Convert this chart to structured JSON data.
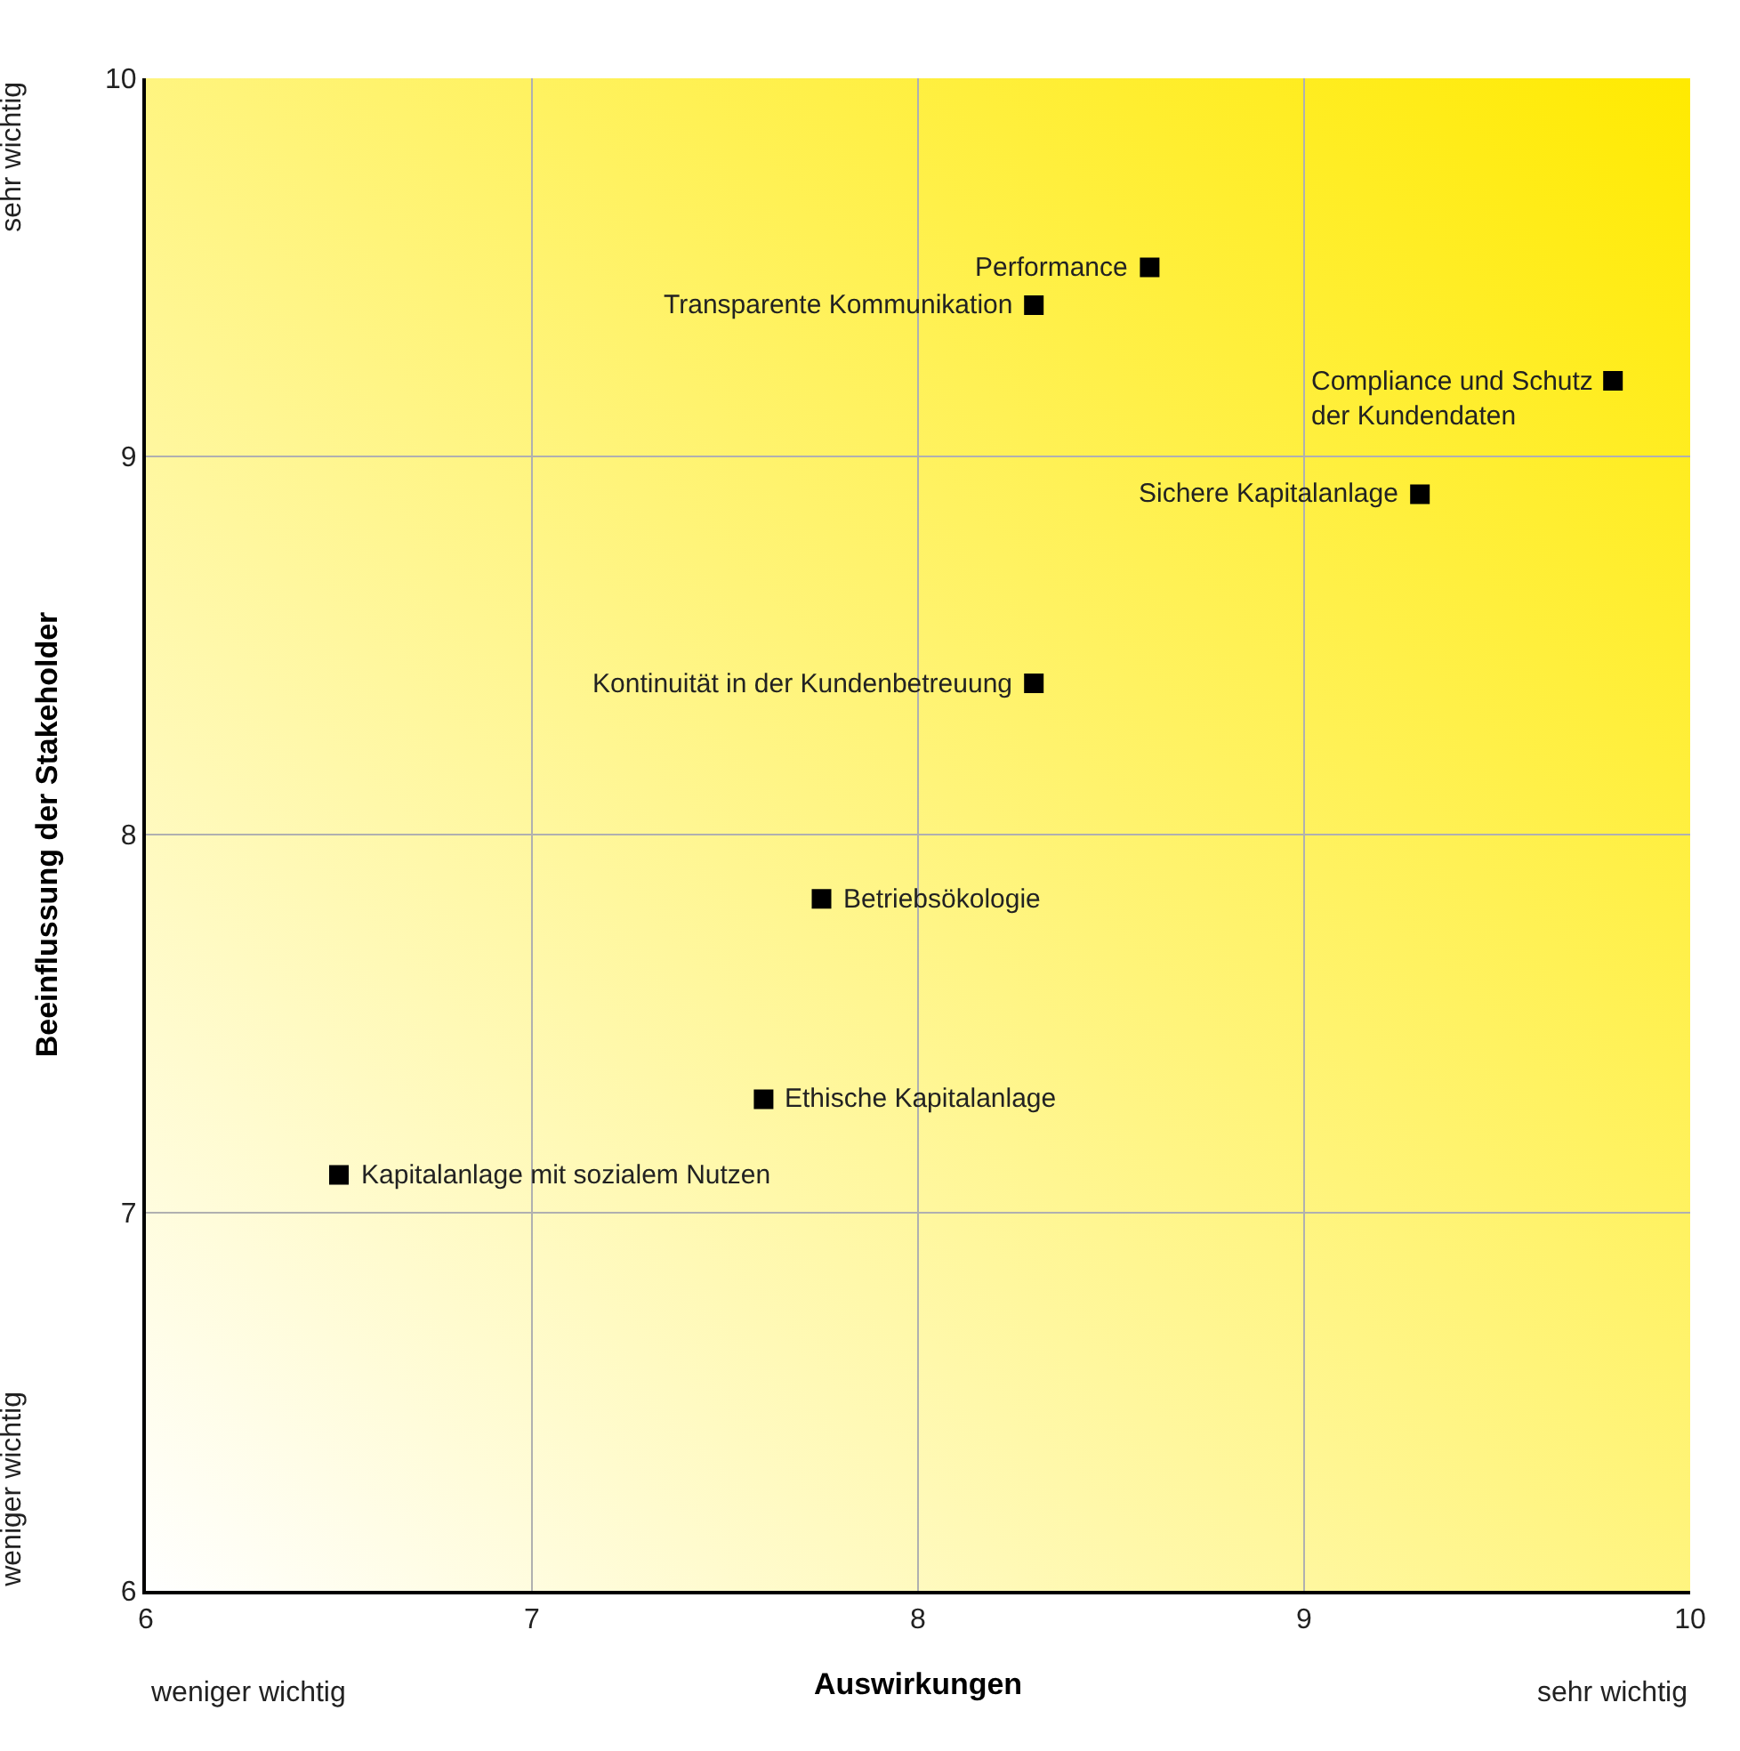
{
  "chart_data": {
    "type": "scatter",
    "xlabel": "Auswirkungen",
    "ylabel": "Beeinflussung der Stakeholder",
    "series": [
      {
        "color": "#000000",
        "x": [
          8.6,
          8.3,
          9.8,
          9.3,
          8.3,
          7.75,
          7.6,
          6.5
        ],
        "values": [
          9.5,
          9.4,
          9.2,
          8.9,
          8.4,
          7.83,
          7.3,
          7.1
        ]
      }
    ],
    "annotations": [
      {
        "text": "Performance",
        "x": 8.6,
        "y": 9.5
      },
      {
        "text": "Transparente Kommunikation",
        "x": 8.3,
        "y": 9.4
      },
      {
        "text": "Compliance und Schutz\nder Kundendaten",
        "x": 9.8,
        "y": 9.2
      },
      {
        "text": "Sichere Kapitalanlage",
        "x": 9.3,
        "y": 8.9
      },
      {
        "text": "Kontinuität in der Kundenbetreuung",
        "x": 8.3,
        "y": 8.4
      },
      {
        "text": "Betriebsökologie",
        "x": 7.75,
        "y": 7.83
      },
      {
        "text": "Ethische Kapitalanlage",
        "x": 7.6,
        "y": 7.3
      },
      {
        "text": "Kapitalanlage mit sozialem Nutzen",
        "x": 6.5,
        "y": 7.1
      },
      "weniger wichtig",
      "sehr wichtig",
      "weniger wichtig",
      "sehr wichtig"
    ],
    "xlim": [
      6,
      10
    ],
    "ylim": [
      6,
      10
    ],
    "xticks": [
      6,
      7,
      8,
      9,
      10
    ],
    "yticks": [
      6,
      7,
      8,
      9,
      10
    ],
    "grid": true,
    "marker": "square",
    "legend": false
  }
}
